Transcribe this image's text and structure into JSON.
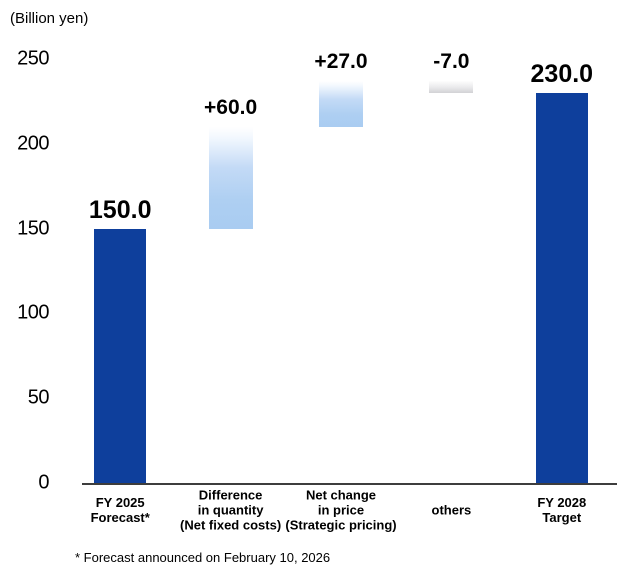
{
  "header": {
    "unit_label": "(Billion yen)"
  },
  "footnote": "* Forecast announced on February 10, 2026",
  "colors": {
    "solid_bar_blue": "#0E3F9C",
    "float_bar_light_blue": "#AECFF2",
    "float_bar_gray": "#D2D2D5",
    "axis_line": "#3D3D3D",
    "text": "#000000",
    "background": "#FFFFFF"
  },
  "chart_data": {
    "type": "bar",
    "subtype": "waterfall",
    "title": "",
    "ylabel": "(Billion yen)",
    "xlabel": "",
    "yticks": [
      0,
      50,
      100,
      150,
      200,
      250
    ],
    "ylim": [
      0,
      265
    ],
    "grid": false,
    "legend_position": "none",
    "categories": [
      "FY 2025 Forecast*",
      "Difference in quantity (Net fixed costs)",
      "Net change in price (Strategic pricing)",
      "others",
      "FY 2028 Target"
    ],
    "bars": [
      {
        "category": "FY 2025 Forecast*",
        "label_lines": [
          "FY 2025",
          "Forecast*"
        ],
        "start": 0,
        "end": 150,
        "value": 150.0,
        "value_label": "150.0",
        "kind": "total",
        "emphasis": "large"
      },
      {
        "category": "Difference in quantity (Net fixed costs)",
        "label_lines": [
          "Difference",
          "in quantity",
          "(Net fixed costs)"
        ],
        "start": 150,
        "end": 210,
        "value": 60.0,
        "value_label": "+60.0",
        "kind": "increase",
        "emphasis": "small"
      },
      {
        "category": "Net change in price (Strategic pricing)",
        "label_lines": [
          "Net change",
          "in price",
          "(Strategic pricing)"
        ],
        "start": 210,
        "end": 237,
        "value": 27.0,
        "value_label": "+27.0",
        "kind": "increase",
        "emphasis": "small"
      },
      {
        "category": "others",
        "label_lines": [
          "others"
        ],
        "start": 237,
        "end": 230,
        "value": -7.0,
        "value_label": "-7.0",
        "kind": "decrease",
        "emphasis": "small"
      },
      {
        "category": "FY 2028 Target",
        "label_lines": [
          "FY 2028",
          "Target"
        ],
        "start": 0,
        "end": 230,
        "value": 230.0,
        "value_label": "230.0",
        "kind": "total",
        "emphasis": "large"
      }
    ]
  }
}
